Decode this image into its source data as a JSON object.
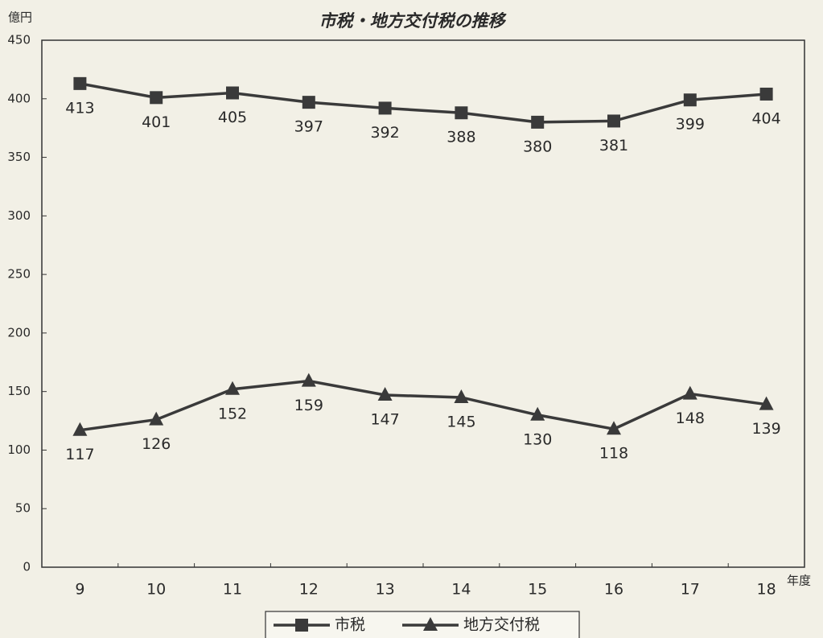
{
  "chart_data": {
    "type": "line",
    "title": "市税・地方交付税の推移",
    "y_label": "億円",
    "x_label": "年度",
    "categories": [
      "9",
      "10",
      "11",
      "12",
      "13",
      "14",
      "15",
      "16",
      "17",
      "18"
    ],
    "series": [
      {
        "name": "市税",
        "color": "#3a3a3a",
        "marker": "square",
        "values": [
          413,
          401,
          405,
          397,
          392,
          388,
          380,
          381,
          399,
          404
        ]
      },
      {
        "name": "地方交付税",
        "color": "#3a3a3a",
        "marker": "triangle",
        "values": [
          117,
          126,
          152,
          159,
          147,
          145,
          130,
          118,
          148,
          139
        ]
      }
    ],
    "ylim": [
      0,
      450
    ],
    "yticks": [
      0,
      50,
      100,
      150,
      200,
      250,
      300,
      350,
      400,
      450
    ],
    "grid": false
  }
}
